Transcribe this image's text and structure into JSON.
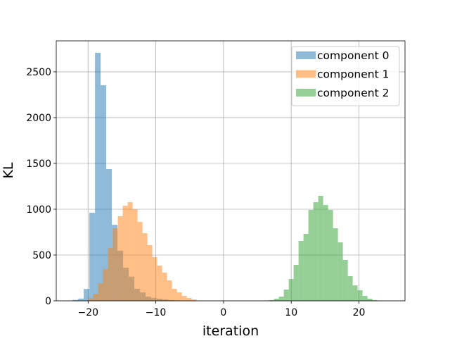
{
  "chart_data": {
    "type": "histogram",
    "title": "",
    "xlabel": "iteration",
    "ylabel": "KL",
    "xlim": [
      -24.7,
      26.8
    ],
    "ylim": [
      0,
      2838
    ],
    "xticks": [
      -20,
      -10,
      0,
      10,
      20
    ],
    "xtick_labels": [
      "−20",
      "−10",
      "0",
      "10",
      "20"
    ],
    "yticks": [
      0,
      500,
      1000,
      1500,
      2000,
      2500
    ],
    "ytick_labels": [
      "0",
      "500",
      "1000",
      "1500",
      "2000",
      "2500"
    ],
    "grid": true,
    "legend_position": "top-right",
    "alpha": 0.5,
    "series": [
      {
        "name": "component 0",
        "color": "#1f77b4",
        "bin_start": -22.3,
        "bin_width": 0.83,
        "counts": [
          10,
          25,
          130,
          962,
          2708,
          2354,
          1438,
          830,
          548,
          361,
          264,
          131,
          92,
          46,
          30,
          23,
          15,
          8,
          5
        ]
      },
      {
        "name": "component 1",
        "color": "#ff7f0e",
        "bin_start": -19.97,
        "bin_width": 0.727,
        "counts": [
          30,
          77,
          192,
          347,
          577,
          792,
          923,
          1038,
          1077,
          1000,
          862,
          738,
          608,
          477,
          385,
          308,
          223,
          131,
          92,
          54,
          31,
          15
        ]
      },
      {
        "name": "component 2",
        "color": "#2ca02c",
        "bin_start": 6.72,
        "bin_width": 0.727,
        "counts": [
          8,
          23,
          46,
          123,
          238,
          392,
          654,
          731,
          992,
          1077,
          1146,
          1046,
          992,
          792,
          638,
          446,
          269,
          169,
          115,
          54,
          23,
          8
        ]
      }
    ]
  }
}
